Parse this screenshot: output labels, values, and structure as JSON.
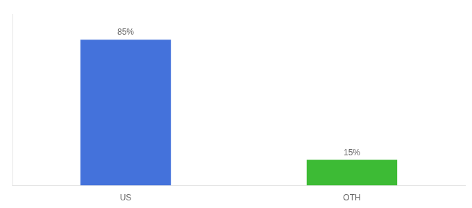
{
  "chart_data": {
    "type": "bar",
    "categories": [
      "US",
      "OTH"
    ],
    "values": [
      85,
      15
    ],
    "value_labels": [
      "85%",
      "15%"
    ],
    "colors": [
      "#4472db",
      "#3dbb35"
    ],
    "ylim": [
      0,
      100
    ],
    "yticks": [],
    "grid": false,
    "data_labels": true,
    "tick_labels": "x"
  }
}
